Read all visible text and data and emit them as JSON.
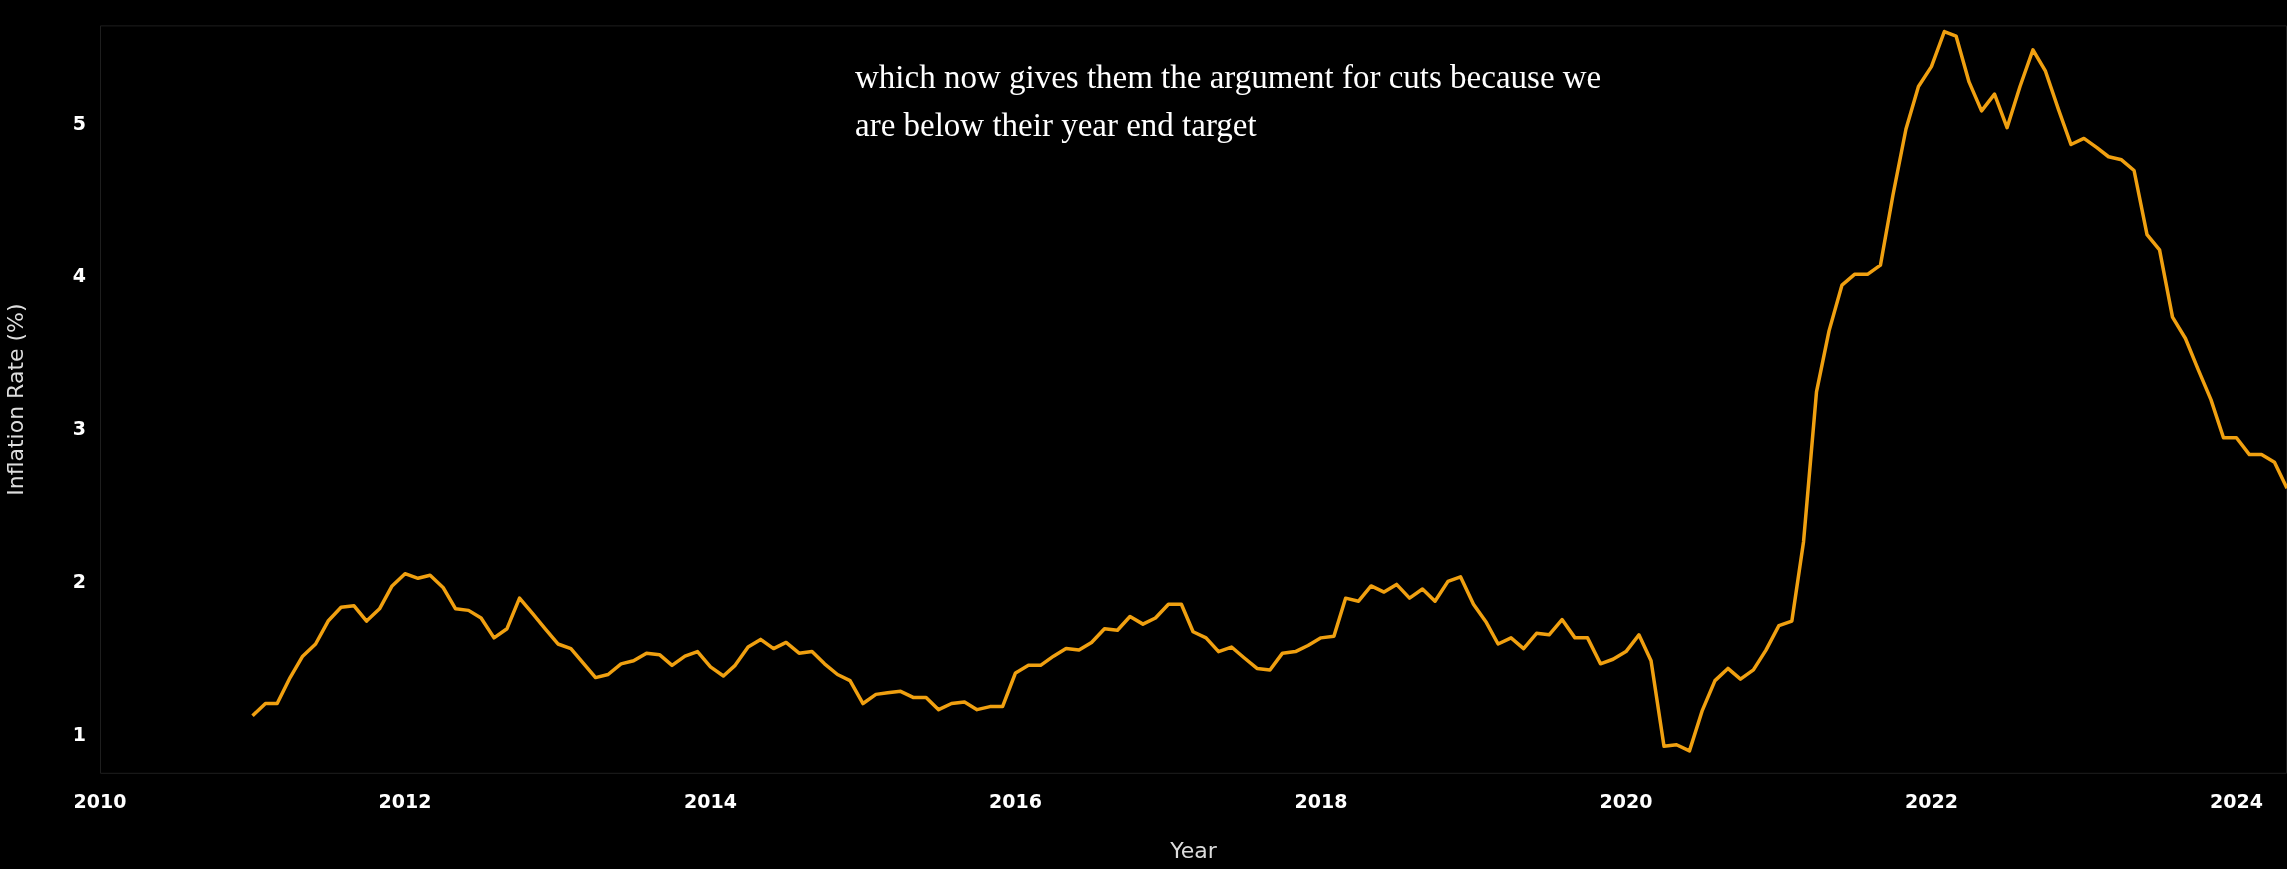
{
  "chart_data": {
    "type": "line",
    "xlabel": "Year",
    "ylabel": "Inflation Rate (%)",
    "annotations": [
      "which now gives them the argument for cuts because we are below their year end target"
    ],
    "color": "#f0a010",
    "x": [
      "2011-01",
      "2011-02",
      "2011-03",
      "2011-04",
      "2011-05",
      "2011-06",
      "2011-07",
      "2011-08",
      "2011-09",
      "2011-10",
      "2011-11",
      "2011-12",
      "2012-01",
      "2012-02",
      "2012-03",
      "2012-04",
      "2012-05",
      "2012-06",
      "2012-07",
      "2012-08",
      "2012-09",
      "2012-10",
      "2012-11",
      "2012-12",
      "2013-01",
      "2013-02",
      "2013-03",
      "2013-04",
      "2013-05",
      "2013-06",
      "2013-07",
      "2013-08",
      "2013-09",
      "2013-10",
      "2013-11",
      "2013-12",
      "2014-01",
      "2014-02",
      "2014-03",
      "2014-04",
      "2014-05",
      "2014-06",
      "2014-07",
      "2014-08",
      "2014-09",
      "2014-10",
      "2014-11",
      "2014-12",
      "2015-01",
      "2015-02",
      "2015-03",
      "2015-04",
      "2015-05",
      "2015-06",
      "2015-07",
      "2015-08",
      "2015-09",
      "2015-10",
      "2015-11",
      "2015-12",
      "2016-01",
      "2016-02",
      "2016-03",
      "2016-04",
      "2016-05",
      "2016-06",
      "2016-07",
      "2016-08",
      "2016-09",
      "2016-10",
      "2016-11",
      "2016-12",
      "2017-01",
      "2017-02",
      "2017-03",
      "2017-04",
      "2017-05",
      "2017-06",
      "2017-07",
      "2017-08",
      "2017-09",
      "2017-10",
      "2017-11",
      "2017-12",
      "2018-01",
      "2018-02",
      "2018-03",
      "2018-04",
      "2018-05",
      "2018-06",
      "2018-07",
      "2018-08",
      "2018-09",
      "2018-10",
      "2018-11",
      "2018-12",
      "2019-01",
      "2019-02",
      "2019-03",
      "2019-04",
      "2019-05",
      "2019-06",
      "2019-07",
      "2019-08",
      "2019-09",
      "2019-10",
      "2019-11",
      "2019-12",
      "2020-01",
      "2020-02",
      "2020-03",
      "2020-04",
      "2020-05",
      "2020-06",
      "2020-07",
      "2020-08",
      "2020-09",
      "2020-10",
      "2020-11",
      "2020-12",
      "2021-01",
      "2021-02",
      "2021-03",
      "2021-04",
      "2021-05",
      "2021-06",
      "2021-07",
      "2021-08",
      "2021-09",
      "2021-10",
      "2021-11",
      "2021-12",
      "2022-01",
      "2022-02",
      "2022-03",
      "2022-04",
      "2022-05",
      "2022-06",
      "2022-07",
      "2022-08",
      "2022-09",
      "2022-10",
      "2022-11",
      "2022-12",
      "2023-01",
      "2023-02",
      "2023-03",
      "2023-04",
      "2023-05",
      "2023-06",
      "2023-07",
      "2023-08",
      "2023-09",
      "2023-10",
      "2023-11",
      "2023-12",
      "2024-01",
      "2024-02",
      "2024-03",
      "2024-04",
      "2024-05"
    ],
    "values": [
      1.13,
      1.21,
      1.21,
      1.38,
      1.52,
      1.6,
      1.75,
      1.84,
      1.85,
      1.75,
      1.83,
      1.98,
      2.06,
      2.03,
      2.05,
      1.97,
      1.83,
      1.82,
      1.77,
      1.64,
      1.7,
      1.9,
      1.8,
      1.7,
      1.6,
      1.57,
      1.48,
      1.38,
      1.4,
      1.47,
      1.49,
      1.54,
      1.53,
      1.46,
      1.52,
      1.55,
      1.45,
      1.39,
      1.46,
      1.58,
      1.63,
      1.57,
      1.61,
      1.54,
      1.55,
      1.47,
      1.4,
      1.36,
      1.21,
      1.27,
      1.28,
      1.29,
      1.25,
      1.25,
      1.17,
      1.21,
      1.22,
      1.17,
      1.19,
      1.19,
      1.41,
      1.46,
      1.46,
      1.52,
      1.57,
      1.56,
      1.61,
      1.7,
      1.69,
      1.78,
      1.73,
      1.77,
      1.86,
      1.86,
      1.68,
      1.64,
      1.55,
      1.58,
      1.51,
      1.44,
      1.43,
      1.54,
      1.55,
      1.59,
      1.64,
      1.65,
      1.9,
      1.88,
      1.98,
      1.94,
      1.99,
      1.9,
      1.96,
      1.88,
      2.01,
      2.04,
      1.86,
      1.74,
      1.6,
      1.64,
      1.57,
      1.67,
      1.66,
      1.76,
      1.64,
      1.64,
      1.47,
      1.5,
      1.55,
      1.66,
      1.49,
      0.93,
      0.94,
      0.9,
      1.16,
      1.36,
      1.44,
      1.37,
      1.43,
      1.56,
      1.72,
      1.75,
      2.27,
      3.25,
      3.65,
      3.95,
      4.02,
      4.02,
      4.08,
      4.54,
      4.97,
      5.25,
      5.38,
      5.61,
      5.58,
      5.28,
      5.09,
      5.2,
      4.98,
      5.25,
      5.49,
      5.35,
      5.1,
      4.87,
      4.91,
      4.85,
      4.79,
      4.77,
      4.7,
      4.28,
      4.18,
      3.74,
      3.6,
      3.4,
      3.2,
      2.95,
      2.95,
      2.84,
      2.84,
      2.79,
      2.62
    ],
    "xlim": [
      "2010",
      "2024-05"
    ],
    "xticks": [
      "2010",
      "2012",
      "2014",
      "2016",
      "2018",
      "2020",
      "2022",
      "2024"
    ],
    "ylim": [
      0.75,
      5.65
    ],
    "yticks": [
      1,
      2,
      3,
      4,
      5
    ]
  }
}
